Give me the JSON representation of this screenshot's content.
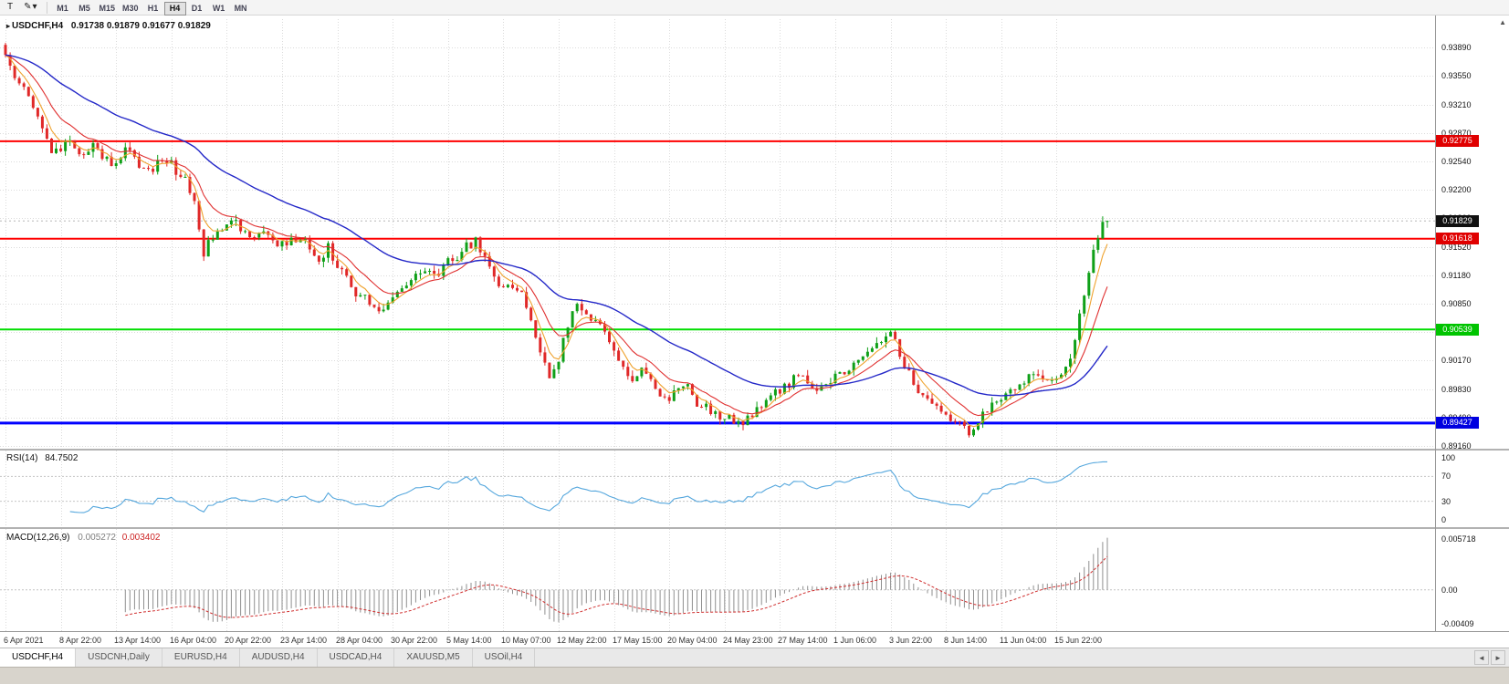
{
  "toolbar": {
    "text_tool": "T",
    "timeframes": [
      "M1",
      "M5",
      "M15",
      "M30",
      "H1",
      "H4",
      "D1",
      "W1",
      "MN"
    ],
    "active_timeframe": "H4"
  },
  "icons": {
    "pencil": "✎",
    "dropdown": "▾",
    "scroll_up": "▲",
    "tab_left": "◄",
    "tab_right": "►",
    "title_marker": "▸"
  },
  "header": {
    "symbol_period": "USDCHF,H4",
    "ohlc_text": "0.91738 0.91879 0.91677 0.91829"
  },
  "rsi_panel": {
    "name": "RSI(14)",
    "value": "84.7502"
  },
  "macd_panel": {
    "name": "MACD(12,26,9)",
    "value_main": "0.005272",
    "value_signal": "0.003402"
  },
  "tabs": [
    {
      "label": "USDCHF,H4",
      "active": true
    },
    {
      "label": "USDCNH,Daily",
      "active": false
    },
    {
      "label": "EURUSD,H4",
      "active": false
    },
    {
      "label": "AUDUSD,H4",
      "active": false
    },
    {
      "label": "USDCAD,H4",
      "active": false
    },
    {
      "label": "XAUUSD,M5",
      "active": false
    },
    {
      "label": "USOil,H4",
      "active": false
    }
  ],
  "chart_data": {
    "type": "candlestick",
    "symbol": "USDCHF",
    "period": "H4",
    "last_candle": {
      "open": 0.91738,
      "high": 0.91879,
      "low": 0.91677,
      "close": 0.91829
    },
    "current_price": {
      "value": 0.91829,
      "label": "0.91829",
      "tag_color": "#101010",
      "line_color": "#b5b5b5"
    },
    "y_axis_labels": [
      "0.93890",
      "0.93550",
      "0.93210",
      "0.92870",
      "0.92540",
      "0.92200",
      "0.91860",
      "0.91520",
      "0.91180",
      "0.90850",
      "0.90510",
      "0.90170",
      "0.89830",
      "0.89490",
      "0.89160"
    ],
    "x_axis_labels": [
      "6 Apr 2021",
      "8 Apr 22:00",
      "13 Apr 14:00",
      "16 Apr 04:00",
      "20 Apr 22:00",
      "23 Apr 14:00",
      "28 Apr 04:00",
      "30 Apr 22:00",
      "5 May 14:00",
      "10 May 07:00",
      "12 May 22:00",
      "17 May 15:00",
      "20 May 04:00",
      "24 May 23:00",
      "27 May 14:00",
      "1 Jun 06:00",
      "3 Jun 22:00",
      "8 Jun 14:00",
      "11 Jun 04:00",
      "15 Jun 22:00"
    ],
    "horizontal_lines": [
      {
        "price": 0.92775,
        "label": "0.92775",
        "color": "#ff0000",
        "tag_color": "#e00000",
        "width": 2
      },
      {
        "price": 0.91618,
        "label": "0.91618",
        "color": "#ff0000",
        "tag_color": "#e00000",
        "width": 2
      },
      {
        "price": 0.90539,
        "label": "0.90539",
        "color": "#00dd00",
        "tag_color": "#00c400",
        "width": 2
      },
      {
        "price": 0.89427,
        "label": "0.89427",
        "color": "#0000ff",
        "tag_color": "#0000e0",
        "width": 3
      }
    ],
    "candles": {
      "count": 240,
      "up_color": "#0fa018",
      "down_color": "#e02828",
      "noise": 0.0006,
      "wick": 0.0007,
      "seed": 11
    },
    "moving_averages": [
      {
        "period": 5,
        "method": "ema",
        "color": "#efa22e",
        "width": 1.1
      },
      {
        "period": 12,
        "method": "ema",
        "color": "#e03030",
        "width": 1.1
      },
      {
        "period": 40,
        "method": "ema",
        "color": "#2428c8",
        "width": 1.4
      }
    ],
    "rsi": {
      "period": 14,
      "color": "#55a7dd",
      "levels": [
        100,
        70,
        30,
        0
      ],
      "level_lines": [
        70,
        30
      ],
      "last_value": 84.7502
    },
    "macd": {
      "fast": 12,
      "slow": 26,
      "signal": 9,
      "histogram_color": "#8f8f8f",
      "signal_color": "#d03030",
      "axis_labels": [
        "0.005718",
        "0.00",
        "-0.00409"
      ],
      "last_values": [
        0.005272,
        0.003402
      ]
    },
    "price_path_keyframes": [
      [
        0,
        0.938
      ],
      [
        2,
        0.9352
      ],
      [
        4,
        0.9338
      ],
      [
        6,
        0.932
      ],
      [
        8,
        0.9292
      ],
      [
        10,
        0.9262
      ],
      [
        12,
        0.927
      ],
      [
        14,
        0.9283
      ],
      [
        16,
        0.9258
      ],
      [
        19,
        0.9276
      ],
      [
        21,
        0.9262
      ],
      [
        23,
        0.925
      ],
      [
        25,
        0.9262
      ],
      [
        27,
        0.9268
      ],
      [
        29,
        0.9252
      ],
      [
        31,
        0.9242
      ],
      [
        33,
        0.925
      ],
      [
        35,
        0.9256
      ],
      [
        37,
        0.9242
      ],
      [
        39,
        0.9232
      ],
      [
        41,
        0.9205
      ],
      [
        42,
        0.9175
      ],
      [
        43,
        0.9142
      ],
      [
        44,
        0.9155
      ],
      [
        46,
        0.9168
      ],
      [
        48,
        0.9175
      ],
      [
        50,
        0.918
      ],
      [
        52,
        0.9172
      ],
      [
        54,
        0.9166
      ],
      [
        56,
        0.9172
      ],
      [
        58,
        0.9162
      ],
      [
        60,
        0.9155
      ],
      [
        62,
        0.916
      ],
      [
        64,
        0.9165
      ],
      [
        66,
        0.9148
      ],
      [
        68,
        0.9138
      ],
      [
        70,
        0.9152
      ],
      [
        72,
        0.913
      ],
      [
        74,
        0.9112
      ],
      [
        76,
        0.9098
      ],
      [
        78,
        0.909
      ],
      [
        80,
        0.9082
      ],
      [
        82,
        0.9078
      ],
      [
        84,
        0.9092
      ],
      [
        86,
        0.9106
      ],
      [
        88,
        0.9116
      ],
      [
        90,
        0.9122
      ],
      [
        92,
        0.9128
      ],
      [
        94,
        0.9122
      ],
      [
        96,
        0.9133
      ],
      [
        98,
        0.9142
      ],
      [
        100,
        0.9152
      ],
      [
        102,
        0.9158
      ],
      [
        104,
        0.9138
      ],
      [
        106,
        0.9118
      ],
      [
        108,
        0.9102
      ],
      [
        110,
        0.9108
      ],
      [
        112,
        0.9102
      ],
      [
        114,
        0.906
      ],
      [
        116,
        0.9026
      ],
      [
        118,
        0.9
      ],
      [
        120,
        0.902
      ],
      [
        122,
        0.9062
      ],
      [
        124,
        0.909
      ],
      [
        126,
        0.9075
      ],
      [
        128,
        0.9062
      ],
      [
        130,
        0.905
      ],
      [
        132,
        0.903
      ],
      [
        134,
        0.9008
      ],
      [
        136,
        0.8996
      ],
      [
        138,
        0.9004
      ],
      [
        140,
        0.899
      ],
      [
        142,
        0.898
      ],
      [
        144,
        0.8972
      ],
      [
        146,
        0.8985
      ],
      [
        148,
        0.8992
      ],
      [
        150,
        0.8968
      ],
      [
        152,
        0.896
      ],
      [
        154,
        0.8952
      ],
      [
        156,
        0.895
      ],
      [
        158,
        0.8946
      ],
      [
        160,
        0.894
      ],
      [
        162,
        0.8952
      ],
      [
        164,
        0.8964
      ],
      [
        166,
        0.8974
      ],
      [
        168,
        0.8982
      ],
      [
        170,
        0.899
      ],
      [
        172,
        0.9
      ],
      [
        174,
        0.8993
      ],
      [
        176,
        0.8987
      ],
      [
        178,
        0.8994
      ],
      [
        180,
        0.8998
      ],
      [
        182,
        0.9002
      ],
      [
        184,
        0.901
      ],
      [
        186,
        0.902
      ],
      [
        188,
        0.903
      ],
      [
        190,
        0.9044
      ],
      [
        192,
        0.9052
      ],
      [
        193,
        0.904
      ],
      [
        195,
        0.9012
      ],
      [
        197,
        0.899
      ],
      [
        199,
        0.8975
      ],
      [
        201,
        0.8966
      ],
      [
        203,
        0.8955
      ],
      [
        205,
        0.8946
      ],
      [
        207,
        0.894
      ],
      [
        209,
        0.8932
      ],
      [
        211,
        0.8946
      ],
      [
        213,
        0.896
      ],
      [
        215,
        0.8972
      ],
      [
        217,
        0.8978
      ],
      [
        219,
        0.8984
      ],
      [
        221,
        0.8992
      ],
      [
        223,
        0.8998
      ],
      [
        225,
        0.9
      ],
      [
        227,
        0.8996
      ],
      [
        229,
        0.8998
      ],
      [
        231,
        0.9014
      ],
      [
        232,
        0.9042
      ],
      [
        233,
        0.907
      ],
      [
        234,
        0.9098
      ],
      [
        235,
        0.9124
      ],
      [
        236,
        0.9148
      ],
      [
        237,
        0.9168
      ],
      [
        238,
        0.918
      ],
      [
        239,
        0.91829
      ]
    ]
  }
}
